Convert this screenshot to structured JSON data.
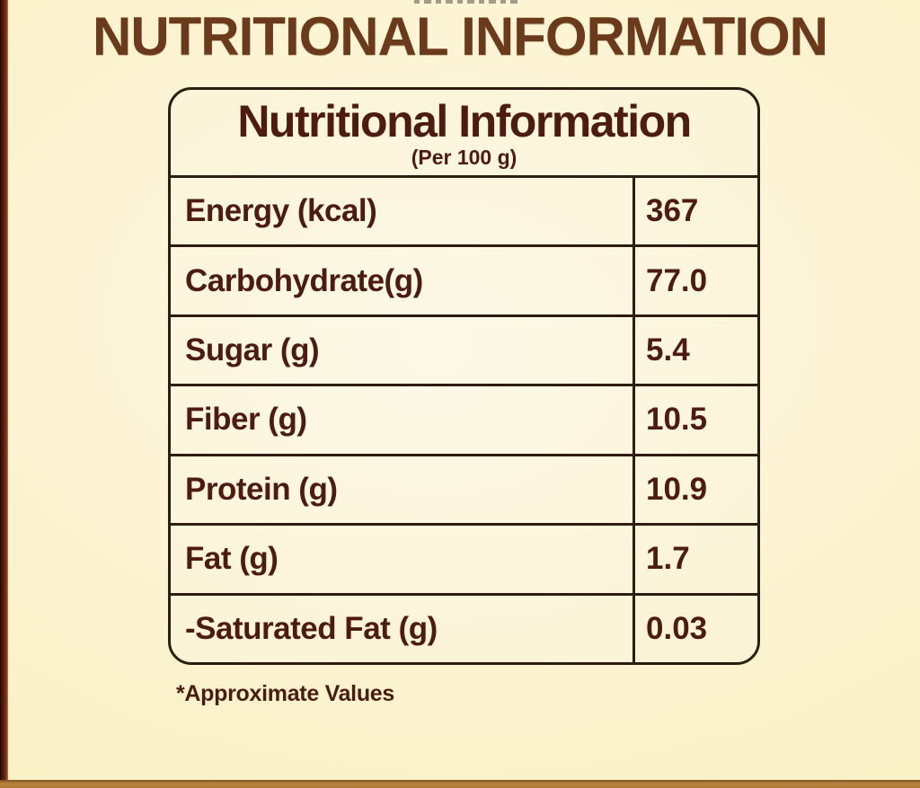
{
  "colors": {
    "page_background": "#fbf2cd",
    "title_brown": "#6b3a1b",
    "table_text_maroon": "#4e1b11",
    "table_border": "#2e1c10",
    "table_background": "#fdf9e8",
    "left_edge_maroon": "#641f0e",
    "bottom_edge_gold": "#b8823f"
  },
  "header": {
    "title": "NUTRITIONAL INFORMATION"
  },
  "table": {
    "title": "Nutritional Information",
    "subtitle": "(Per 100 g)",
    "rows": [
      {
        "label": "Energy (kcal)",
        "value": "367"
      },
      {
        "label": "Carbohydrate(g)",
        "value": "77.0"
      },
      {
        "label": "Sugar (g)",
        "value": "5.4"
      },
      {
        "label": "Fiber (g)",
        "value": "10.5"
      },
      {
        "label": "Protein (g)",
        "value": "10.9"
      },
      {
        "label": "Fat (g)",
        "value": "1.7"
      },
      {
        "label": "-Saturated Fat (g)",
        "value": "0.03"
      }
    ]
  },
  "footnote": "*Approximate Values"
}
